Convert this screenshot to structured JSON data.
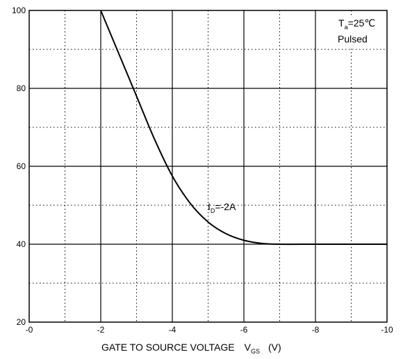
{
  "chart_data": {
    "type": "line",
    "xlabel_main": "GATE TO SOURCE VOLTAGE",
    "xlabel_symbol": "V",
    "xlabel_symbol_sub": "GS",
    "xlabel_unit": "(V)",
    "xlim": [
      0,
      -10
    ],
    "ylim": [
      20,
      100
    ],
    "x_ticks": [
      0,
      -2,
      -4,
      -6,
      -8,
      -10
    ],
    "x_tick_labels": [
      "-0",
      "-2",
      "-4",
      "-6",
      "-8",
      "-10"
    ],
    "y_ticks": [
      20,
      40,
      60,
      80,
      100
    ],
    "y_tick_labels": [
      "20",
      "40",
      "60",
      "80",
      "100"
    ],
    "grid": {
      "major_solid": true,
      "minor_dotted": true,
      "x_minor_step": -1,
      "y_minor_step": 10
    },
    "series": [
      {
        "name": "I_D=-2A",
        "color": "#000000",
        "x": [
          -2.0,
          -2.5,
          -3.0,
          -3.5,
          -4.0,
          -4.5,
          -5.0,
          -5.5,
          -6.0,
          -6.5,
          -7.0,
          -8.0,
          -9.0,
          -10.0
        ],
        "y": [
          100,
          89,
          78,
          67,
          57.5,
          50.5,
          45.7,
          42.7,
          41.0,
          40.2,
          40,
          40,
          40,
          40
        ]
      }
    ],
    "annotations": {
      "curve_label_main": "I",
      "curve_label_sub": "D",
      "curve_label_rest": "=-2A",
      "temp_label_main": "T",
      "temp_label_sub": "a",
      "temp_label_rest": "=25℃",
      "pulsed_label": "Pulsed"
    }
  }
}
